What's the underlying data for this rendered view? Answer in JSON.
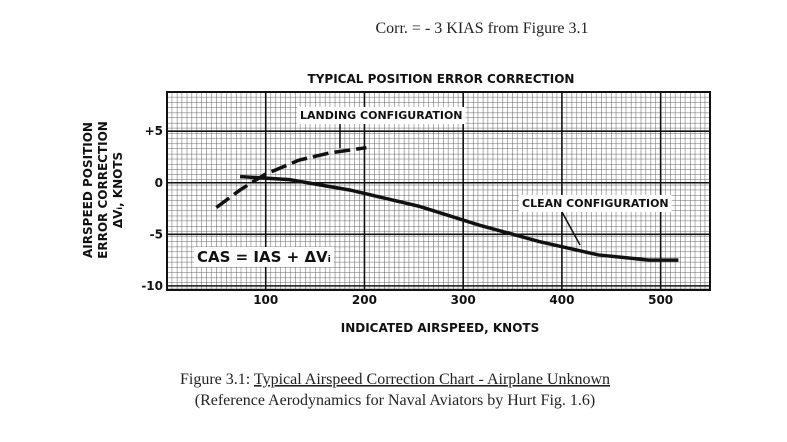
{
  "header": "Corr. = - 3 KIAS from Figure 3.1",
  "chart_data": {
    "type": "line",
    "title": "TYPICAL POSITION ERROR CORRECTION",
    "xlabel": "INDICATED AIRSPEED, KNOTS",
    "ylabel": [
      "AIRSPEED POSITION",
      "ERROR CORRECTION",
      "ΔVᵢ, KNOTS"
    ],
    "annotation": "CAS = IAS + ΔVᵢ",
    "xlim": [
      0,
      550
    ],
    "xticks": [
      100,
      200,
      300,
      400,
      500
    ],
    "ylim": [
      -10.4,
      8.8
    ],
    "yticks": [
      {
        "value": 5,
        "label": "+5"
      },
      0,
      -5,
      -10
    ],
    "grid": true,
    "series": [
      {
        "name": "LANDING CONFIGURATION",
        "color": "#111111",
        "dashed": true,
        "x": [
          50,
          74,
          99,
          134,
          165,
          202
        ],
        "values": [
          -2.4,
          -0.7,
          0.8,
          2.2,
          2.9,
          3.4
        ]
      },
      {
        "name": "CLEAN CONFIGURATION",
        "color": "#111111",
        "dashed": false,
        "x": [
          74,
          124,
          185,
          256,
          316,
          377,
          437,
          488,
          518
        ],
        "values": [
          0.6,
          0.3,
          -0.7,
          -2.3,
          -4.1,
          -5.7,
          -7.0,
          -7.5,
          -7.5
        ]
      }
    ]
  },
  "caption": {
    "label": "Figure 3.1:",
    "title": "Typical Airspeed Correction Chart - Airplane Unknown",
    "source": "(Reference Aerodynamics for Naval Aviators by Hurt Fig. 1.6)"
  }
}
